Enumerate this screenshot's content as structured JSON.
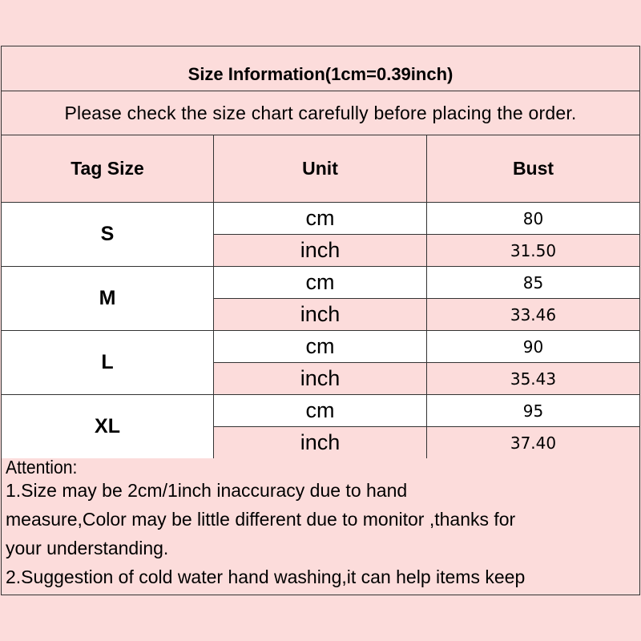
{
  "title": "Size Information(1cm=0.39inch)",
  "notice": "Please check the size chart carefully before placing the order.",
  "headers": [
    "Tag Size",
    "Unit",
    "Bust"
  ],
  "rows": [
    {
      "size": "S",
      "cm_label": "cm",
      "inch_label": "inch",
      "cm": "80",
      "inch": "31.50"
    },
    {
      "size": "M",
      "cm_label": "cm",
      "inch_label": "inch",
      "cm": "85",
      "inch": "33.46"
    },
    {
      "size": "L",
      "cm_label": "cm",
      "inch_label": "inch",
      "cm": "90",
      "inch": "35.43"
    },
    {
      "size": "XL",
      "cm_label": "cm",
      "inch_label": "inch",
      "cm": "95",
      "inch": "37.40"
    }
  ],
  "attention": [
    "Attention:",
    "1.Size may be 2cm/1inch inaccuracy due to hand",
    "measure,Color may be little different due to monitor ,thanks for",
    "your understanding.",
    "2.Suggestion of cold water hand washing,it can help items keep"
  ],
  "colors": {
    "background": "#fcdcdb",
    "white_cell": "#ffffff",
    "border": "#333333"
  }
}
